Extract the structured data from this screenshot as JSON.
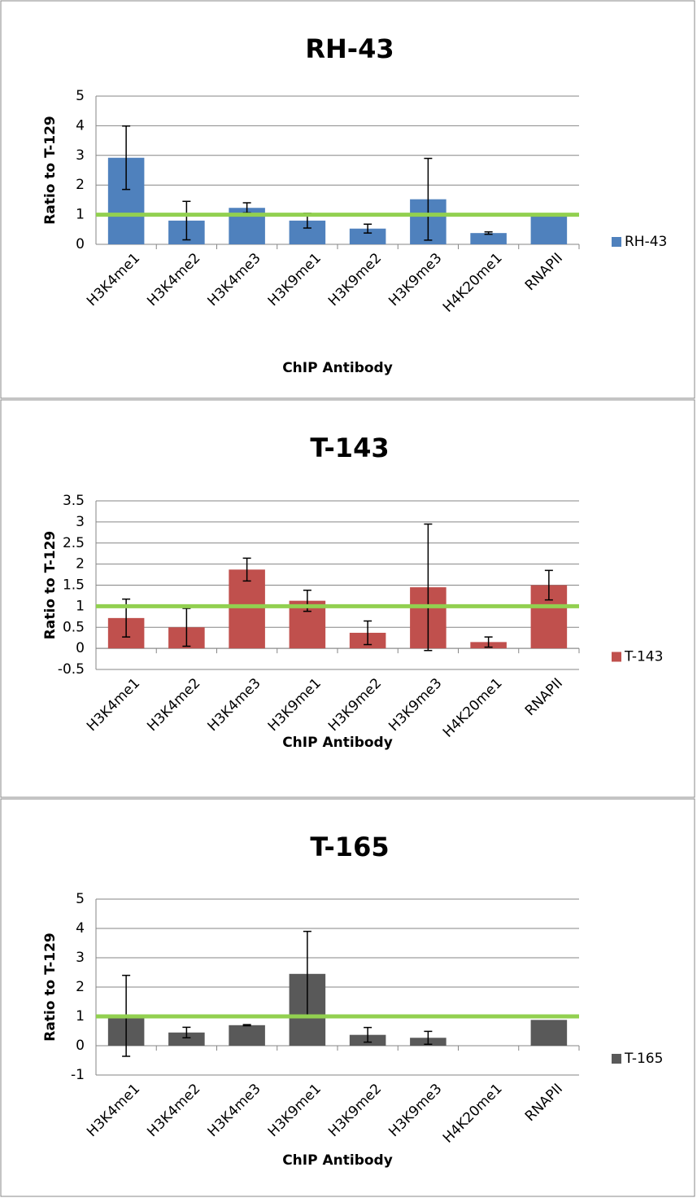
{
  "chart_data": [
    {
      "type": "bar",
      "title": "RH-43",
      "x_label": "ChIP Antibody",
      "y_label": "Ratio to T-129",
      "categories": [
        "H3K4me1",
        "H3K4me2",
        "H3K4me3",
        "H3K9me1",
        "H3K9me2",
        "H3K9me3",
        "H4K20me1",
        "RNAPII"
      ],
      "series": [
        {
          "name": "RH-43",
          "color": "#4f81bd",
          "values": [
            2.92,
            0.8,
            1.23,
            0.8,
            0.53,
            1.52,
            0.38,
            1.0
          ],
          "errors": [
            1.07,
            0.65,
            0.17,
            0.25,
            0.15,
            1.38,
            0.04,
            null
          ]
        }
      ],
      "reference_line": {
        "value": 1,
        "color": "#92d050"
      },
      "ylim": [
        0,
        5
      ],
      "yticks": [
        0,
        1,
        2,
        3,
        4,
        5
      ],
      "grid": true,
      "legend": "right"
    },
    {
      "type": "bar",
      "title": "T-143",
      "x_label": "ChIP Antibody",
      "y_label": "Ratio to T-129",
      "categories": [
        "H3K4me1",
        "H3K4me2",
        "H3K4me3",
        "H3K9me1",
        "H3K9me2",
        "H3K9me3",
        "H4K20me1",
        "RNAPII"
      ],
      "series": [
        {
          "name": "T-143",
          "color": "#c0504d",
          "values": [
            0.72,
            0.5,
            1.87,
            1.13,
            0.37,
            1.45,
            0.15,
            1.5
          ],
          "errors": [
            0.45,
            0.45,
            0.27,
            0.25,
            0.28,
            1.5,
            0.12,
            0.35
          ]
        }
      ],
      "reference_line": {
        "value": 1,
        "color": "#92d050"
      },
      "ylim": [
        -0.5,
        3.5
      ],
      "yticks": [
        -0.5,
        0,
        0.5,
        1,
        1.5,
        2,
        2.5,
        3,
        3.5
      ],
      "grid": true,
      "legend": "right"
    },
    {
      "type": "bar",
      "title": "T-165",
      "x_label": "ChIP Antibody",
      "y_label": "Ratio to T-129",
      "categories": [
        "H3K4me1",
        "H3K4me2",
        "H3K4me3",
        "H3K9me1",
        "H3K9me2",
        "H3K9me3",
        "H4K20me1",
        "RNAPII"
      ],
      "series": [
        {
          "name": "T-165",
          "color": "#595959",
          "values": [
            1.02,
            0.45,
            0.7,
            2.45,
            0.37,
            0.27,
            null,
            0.88
          ],
          "errors": [
            1.38,
            0.18,
            0.02,
            1.45,
            0.25,
            0.22,
            null,
            null
          ]
        }
      ],
      "reference_line": {
        "value": 1,
        "color": "#92d050"
      },
      "ylim": [
        -1,
        5
      ],
      "yticks": [
        -1,
        0,
        1,
        2,
        3,
        4,
        5
      ],
      "grid": true,
      "legend": "right"
    }
  ]
}
